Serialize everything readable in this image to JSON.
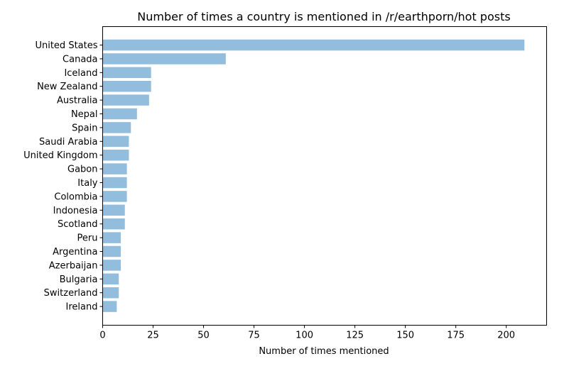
{
  "chart_data": {
    "type": "bar",
    "orientation": "horizontal",
    "title": "Number of times a country is mentioned in /r/earthporn/hot posts",
    "xlabel": "Number of times mentioned",
    "ylabel": "",
    "xlim": [
      0,
      220
    ],
    "xticks": [
      0,
      25,
      50,
      75,
      100,
      125,
      150,
      175,
      200
    ],
    "categories": [
      "United States",
      "Canada",
      "Iceland",
      "New Zealand",
      "Australia",
      "Nepal",
      "Spain",
      "Saudi Arabia",
      "United Kingdom",
      "Gabon",
      "Italy",
      "Colombia",
      "Indonesia",
      "Scotland",
      "Peru",
      "Argentina",
      "Azerbaijan",
      "Bulgaria",
      "Switzerland",
      "Ireland"
    ],
    "values": [
      209,
      61,
      24,
      24,
      23,
      17,
      14,
      13,
      13,
      12,
      12,
      12,
      11,
      11,
      9,
      9,
      9,
      8,
      8,
      7
    ],
    "bar_color": "#93bddd",
    "grid": false,
    "legend": "none"
  }
}
